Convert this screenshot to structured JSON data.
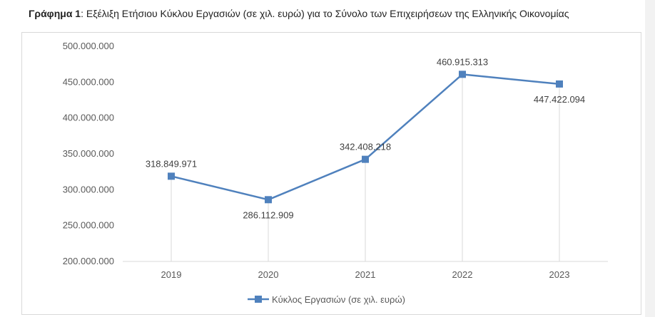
{
  "caption": {
    "label": "Γράφημα 1",
    "text": ": Εξέλιξη Ετήσιου Κύκλου Εργασιών (σε χιλ. ευρώ) για το Σύνολο των Επιχειρήσεων της Ελληνικής Οικονομίας"
  },
  "chart_data": {
    "type": "line",
    "categories": [
      "2019",
      "2020",
      "2021",
      "2022",
      "2023"
    ],
    "series": [
      {
        "name": "Κύκλος Εργασιών (σε χιλ. ευρώ)",
        "values": [
          318849971,
          286112909,
          342408218,
          460915313,
          447422094
        ],
        "value_labels": [
          "318.849.971",
          "286.112.909",
          "342.408.218",
          "460.915.313",
          "447.422.094"
        ],
        "color": "#4f81bd"
      }
    ],
    "ylim": [
      200000000,
      500000000
    ],
    "yticks": [
      200000000,
      250000000,
      300000000,
      350000000,
      400000000,
      450000000,
      500000000
    ],
    "ytick_labels": [
      "200.000.000",
      "250.000.000",
      "300.000.000",
      "350.000.000",
      "400.000.000",
      "450.000.000",
      "500.000.000"
    ],
    "grid": false,
    "drop_lines": true,
    "legend": "bottom"
  }
}
